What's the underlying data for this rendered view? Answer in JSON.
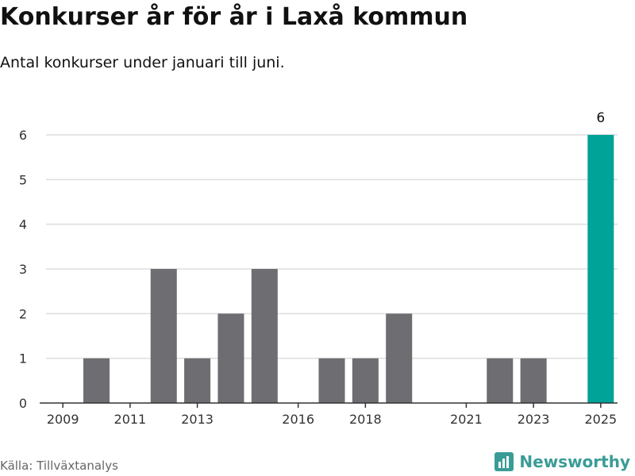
{
  "header": {
    "title": "Konkurser år för år i Laxå kommun",
    "subtitle": "Antal konkurser under januari till juni."
  },
  "footer": {
    "source": "Källa: Tillväxtanalys",
    "brand": "Newsworthy"
  },
  "colors": {
    "bar": "#6d6d72",
    "highlight": "#00a398",
    "grid": "#dddddd",
    "axis": "#333333",
    "brand": "#3a9c96"
  },
  "chart_data": {
    "type": "bar",
    "title": "Konkurser år för år i Laxå kommun",
    "subtitle": "Antal konkurser under januari till juni.",
    "xlabel": "",
    "ylabel": "",
    "categories": [
      "2009",
      "2010",
      "2011",
      "2012",
      "2013",
      "2014",
      "2015",
      "2016",
      "2017",
      "2018",
      "2019",
      "2020",
      "2021",
      "2022",
      "2023",
      "2024",
      "2025"
    ],
    "values": [
      0,
      1,
      0,
      3,
      1,
      2,
      3,
      0,
      1,
      1,
      2,
      0,
      0,
      1,
      1,
      0,
      6
    ],
    "x_tick_labels": [
      "2009",
      "2011",
      "2013",
      "2016",
      "2018",
      "2021",
      "2023",
      "2025"
    ],
    "y_ticks": [
      0,
      1,
      2,
      3,
      4,
      5,
      6
    ],
    "ylim": [
      0,
      6
    ],
    "highlight_category": "2025",
    "data_labels": [
      {
        "category": "2025",
        "text": "6"
      }
    ],
    "grid": true,
    "legend": "none"
  }
}
